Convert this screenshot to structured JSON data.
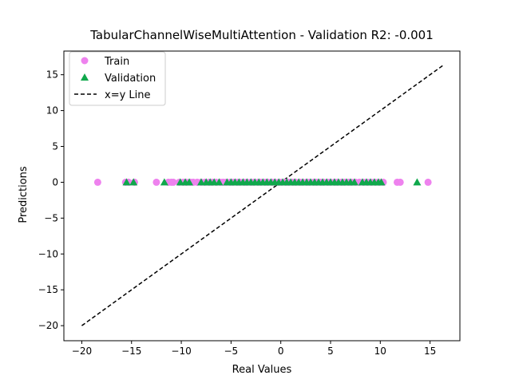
{
  "chart_data": {
    "type": "scatter",
    "title": "TabularChannelWiseMultiAttention - Validation R2: -0.001",
    "xlabel": "Real Values",
    "ylabel": "Predictions",
    "xlim": [
      -21.8,
      18.0
    ],
    "ylim": [
      -22.1,
      18.3
    ],
    "xticks": [
      -20,
      -15,
      -10,
      -5,
      0,
      5,
      10,
      15
    ],
    "yticks": [
      -20,
      -15,
      -10,
      -5,
      0,
      5,
      10,
      15
    ],
    "tick_labels_x": [
      "−20",
      "−15",
      "−10",
      "−5",
      "0",
      "5",
      "10",
      "15"
    ],
    "tick_labels_y": [
      "−20",
      "−15",
      "−10",
      "−5",
      "0",
      "5",
      "10",
      "15"
    ],
    "grid": false,
    "legend_position": "upper-left",
    "series": [
      {
        "name": "Train",
        "marker": "circle",
        "color": "#ee82ee",
        "x": [
          -18.4,
          -15.6,
          -15.3,
          -14.7,
          -12.5,
          -11.3,
          -11.0,
          -10.8,
          -10.2,
          -9.8,
          -9.5,
          -9.1,
          -8.8,
          -8.4,
          -8.0,
          -7.6,
          -7.2,
          -6.9,
          -6.5,
          -6.1,
          -5.8,
          -5.5,
          -5.1,
          -4.8,
          -4.4,
          -4.1,
          -3.7,
          -3.4,
          -3.0,
          -2.7,
          -2.3,
          -2.0,
          -1.6,
          -1.3,
          -0.9,
          -0.6,
          -0.2,
          0.1,
          0.5,
          0.8,
          1.2,
          1.5,
          1.9,
          2.2,
          2.6,
          2.9,
          3.3,
          3.6,
          4.0,
          4.3,
          4.7,
          5.0,
          5.4,
          5.7,
          6.1,
          6.4,
          6.8,
          7.1,
          7.5,
          7.9,
          8.3,
          8.7,
          9.1,
          9.5,
          9.9,
          10.3,
          11.7,
          12.0,
          14.8
        ],
        "y": [
          0,
          0,
          0,
          0,
          0,
          0,
          0,
          0,
          0,
          0,
          0,
          0,
          0,
          0,
          0,
          0,
          0,
          0,
          0,
          0,
          0,
          0,
          0,
          0,
          0,
          0,
          0,
          0,
          0,
          0,
          0,
          0,
          0,
          0,
          0,
          0,
          0,
          0,
          0,
          0,
          0,
          0,
          0,
          0,
          0,
          0,
          0,
          0,
          0,
          0,
          0,
          0,
          0,
          0,
          0,
          0,
          0,
          0,
          0,
          0,
          0,
          0,
          0,
          0,
          0,
          0,
          0,
          0,
          0
        ]
      },
      {
        "name": "Validation",
        "marker": "triangle",
        "color": "#10a84c",
        "x": [
          -15.5,
          -14.8,
          -11.7,
          -10.1,
          -9.6,
          -9.2,
          -8.0,
          -7.5,
          -7.1,
          -6.7,
          -6.2,
          -5.4,
          -5.0,
          -4.6,
          -4.2,
          -3.8,
          -3.4,
          -3.0,
          -2.6,
          -2.2,
          -1.8,
          -1.4,
          -1.0,
          -0.6,
          -0.2,
          0.2,
          0.6,
          1.0,
          1.4,
          1.8,
          2.2,
          2.6,
          3.0,
          3.4,
          3.8,
          4.2,
          4.6,
          5.0,
          5.4,
          5.8,
          6.2,
          6.6,
          7.0,
          7.4,
          8.2,
          8.6,
          9.0,
          9.4,
          9.8,
          10.1,
          13.7
        ],
        "y": [
          0,
          0,
          0,
          0,
          0,
          0,
          0,
          0,
          0,
          0,
          0,
          0,
          0,
          0,
          0,
          0,
          0,
          0,
          0,
          0,
          0,
          0,
          0,
          0,
          0,
          0,
          0,
          0,
          0,
          0,
          0,
          0,
          0,
          0,
          0,
          0,
          0,
          0,
          0,
          0,
          0,
          0,
          0,
          0,
          0,
          0,
          0,
          0,
          0,
          0,
          0
        ]
      },
      {
        "name": "x=y Line",
        "marker": "dashed-line",
        "color": "#000000",
        "x": [
          -20.0,
          16.3
        ],
        "y": [
          -20.0,
          16.3
        ]
      }
    ]
  }
}
